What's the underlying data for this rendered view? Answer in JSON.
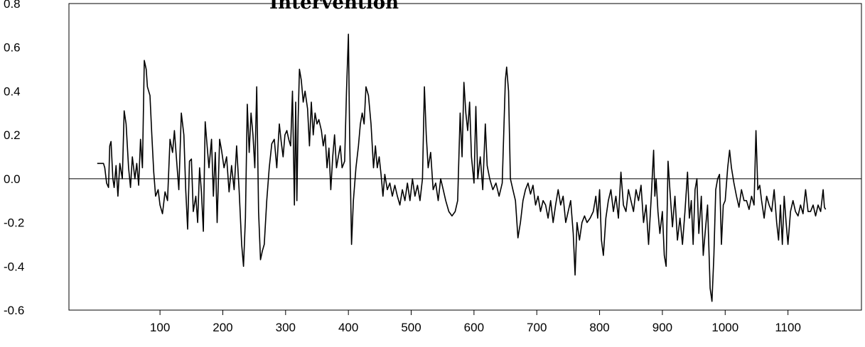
{
  "chart_data": {
    "type": "line",
    "title": "Intervention",
    "x": [
      0,
      5,
      10,
      12,
      15,
      18,
      20,
      22,
      25,
      27,
      30,
      33,
      36,
      40,
      43,
      46,
      50,
      53,
      56,
      60,
      63,
      66,
      69,
      72,
      75,
      78,
      80,
      84,
      87,
      90,
      93,
      97,
      100,
      104,
      108,
      112,
      116,
      120,
      123,
      127,
      130,
      134,
      138,
      141,
      144,
      147,
      150,
      153,
      157,
      160,
      163,
      166,
      169,
      172,
      175,
      178,
      182,
      185,
      188,
      191,
      195,
      198,
      202,
      206,
      210,
      214,
      218,
      222,
      226,
      230,
      233,
      236,
      239,
      242,
      245,
      248,
      251,
      254,
      257,
      260,
      263,
      266,
      270,
      274,
      278,
      282,
      286,
      290,
      293,
      296,
      299,
      302,
      305,
      308,
      311,
      314,
      316,
      318,
      320,
      322,
      325,
      328,
      331,
      335,
      338,
      341,
      344,
      347,
      350,
      353,
      357,
      360,
      363,
      366,
      369,
      372,
      375,
      378,
      381,
      384,
      387,
      390,
      394,
      397,
      400,
      402,
      405,
      408,
      412,
      416,
      419,
      422,
      425,
      428,
      432,
      436,
      440,
      443,
      446,
      449,
      452,
      455,
      458,
      462,
      466,
      470,
      474,
      478,
      482,
      486,
      490,
      494,
      498,
      502,
      506,
      510,
      514,
      518,
      521,
      524,
      527,
      531,
      535,
      539,
      543,
      547,
      551,
      555,
      560,
      565,
      570,
      574,
      578,
      581,
      584,
      587,
      590,
      593,
      596,
      600,
      603,
      606,
      610,
      614,
      618,
      621,
      625,
      630,
      635,
      640,
      645,
      650,
      652,
      655,
      658,
      662,
      666,
      670,
      674,
      678,
      682,
      686,
      690,
      694,
      698,
      702,
      706,
      710,
      714,
      718,
      722,
      726,
      730,
      734,
      738,
      742,
      746,
      750,
      754,
      758,
      761,
      764,
      768,
      772,
      776,
      780,
      785,
      790,
      794,
      797,
      800,
      803,
      806,
      810,
      814,
      818,
      822,
      826,
      830,
      834,
      838,
      842,
      846,
      850,
      854,
      858,
      862,
      866,
      870,
      874,
      878,
      882,
      886,
      888,
      890,
      893,
      896,
      900,
      903,
      906,
      909,
      912,
      916,
      920,
      924,
      928,
      932,
      936,
      940,
      943,
      946,
      949,
      952,
      955,
      958,
      962,
      965,
      968,
      972,
      976,
      979,
      982,
      985,
      988,
      991,
      994,
      997,
      1000,
      1004,
      1007,
      1010,
      1014,
      1018,
      1022,
      1026,
      1030,
      1034,
      1038,
      1042,
      1046,
      1049,
      1052,
      1055,
      1058,
      1062,
      1066,
      1070,
      1074,
      1078,
      1082,
      1085,
      1088,
      1091,
      1094,
      1097,
      1100,
      1104,
      1108,
      1112,
      1116,
      1120,
      1124,
      1128,
      1132,
      1136,
      1140,
      1144,
      1148,
      1152,
      1156,
      1158,
      1160
    ],
    "values": [
      0.07,
      0.07,
      0.07,
      0.05,
      -0.02,
      -0.04,
      0.15,
      0.17,
      0.0,
      -0.04,
      0.06,
      -0.08,
      0.07,
      0.0,
      0.31,
      0.25,
      0.05,
      -0.04,
      0.1,
      0.0,
      0.07,
      -0.03,
      0.18,
      0.05,
      0.54,
      0.5,
      0.42,
      0.38,
      0.2,
      0.03,
      -0.08,
      -0.05,
      -0.12,
      -0.16,
      -0.06,
      -0.1,
      0.18,
      0.12,
      0.22,
      0.06,
      -0.05,
      0.3,
      0.2,
      -0.05,
      -0.23,
      0.08,
      0.09,
      -0.15,
      -0.08,
      -0.2,
      0.05,
      -0.06,
      -0.24,
      0.26,
      0.15,
      0.05,
      0.18,
      -0.08,
      0.12,
      -0.2,
      0.18,
      0.13,
      0.05,
      0.1,
      -0.06,
      0.06,
      -0.05,
      0.15,
      -0.05,
      -0.3,
      -0.4,
      -0.18,
      0.34,
      0.12,
      0.3,
      0.2,
      0.05,
      0.42,
      -0.15,
      -0.37,
      -0.33,
      -0.3,
      -0.1,
      0.05,
      0.16,
      0.18,
      0.05,
      0.25,
      0.17,
      0.1,
      0.2,
      0.22,
      0.18,
      0.15,
      0.4,
      -0.12,
      0.35,
      -0.1,
      0.28,
      0.5,
      0.45,
      0.35,
      0.4,
      0.32,
      0.15,
      0.35,
      0.2,
      0.3,
      0.25,
      0.27,
      0.22,
      0.15,
      0.2,
      0.05,
      0.14,
      -0.05,
      0.1,
      0.2,
      0.05,
      0.1,
      0.15,
      0.05,
      0.08,
      0.4,
      0.66,
      0.2,
      -0.3,
      -0.1,
      0.05,
      0.15,
      0.25,
      0.3,
      0.25,
      0.42,
      0.38,
      0.25,
      0.05,
      0.15,
      0.05,
      0.1,
      0.02,
      -0.08,
      0.02,
      -0.05,
      -0.02,
      -0.08,
      -0.03,
      -0.08,
      -0.12,
      -0.05,
      -0.1,
      -0.02,
      -0.1,
      0.0,
      -0.08,
      -0.03,
      -0.1,
      0.0,
      0.42,
      0.2,
      0.05,
      0.12,
      -0.05,
      -0.02,
      -0.1,
      0.0,
      -0.05,
      -0.1,
      -0.15,
      -0.17,
      -0.15,
      -0.1,
      0.3,
      0.1,
      0.44,
      0.3,
      0.22,
      0.35,
      0.1,
      -0.02,
      0.33,
      0.0,
      0.1,
      -0.05,
      0.25,
      0.06,
      0.0,
      -0.05,
      -0.02,
      -0.08,
      -0.02,
      0.45,
      0.51,
      0.4,
      0.0,
      -0.05,
      -0.1,
      -0.27,
      -0.2,
      -0.1,
      -0.05,
      -0.02,
      -0.07,
      -0.03,
      -0.12,
      -0.08,
      -0.15,
      -0.1,
      -0.12,
      -0.18,
      -0.1,
      -0.2,
      -0.12,
      -0.05,
      -0.12,
      -0.08,
      -0.2,
      -0.15,
      -0.1,
      -0.25,
      -0.44,
      -0.2,
      -0.28,
      -0.2,
      -0.17,
      -0.2,
      -0.18,
      -0.15,
      -0.08,
      -0.18,
      -0.05,
      -0.28,
      -0.35,
      -0.18,
      -0.1,
      -0.05,
      -0.15,
      -0.08,
      -0.18,
      0.03,
      -0.12,
      -0.15,
      -0.05,
      -0.1,
      -0.15,
      -0.05,
      -0.1,
      -0.03,
      -0.2,
      -0.12,
      -0.3,
      -0.1,
      0.13,
      -0.08,
      0.0,
      -0.15,
      -0.25,
      -0.15,
      -0.35,
      -0.4,
      0.08,
      -0.05,
      -0.22,
      -0.08,
      -0.28,
      -0.18,
      -0.3,
      -0.15,
      0.03,
      -0.18,
      -0.1,
      -0.3,
      -0.05,
      0.0,
      -0.25,
      -0.08,
      -0.35,
      -0.25,
      -0.12,
      -0.5,
      -0.56,
      -0.35,
      -0.05,
      0.0,
      0.02,
      -0.3,
      -0.12,
      -0.1,
      0.05,
      0.13,
      0.05,
      -0.02,
      -0.08,
      -0.13,
      -0.05,
      -0.1,
      -0.1,
      -0.14,
      -0.08,
      -0.12,
      0.22,
      -0.05,
      -0.03,
      -0.1,
      -0.18,
      -0.08,
      -0.12,
      -0.15,
      -0.05,
      -0.2,
      -0.28,
      -0.12,
      -0.3,
      -0.08,
      -0.2,
      -0.3,
      -0.15,
      -0.1,
      -0.15,
      -0.17,
      -0.12,
      -0.16,
      -0.05,
      -0.15,
      -0.15,
      -0.12,
      -0.17,
      -0.12,
      -0.15,
      -0.05,
      -0.13,
      -0.14
    ],
    "color": "#000000",
    "xlim": [
      -45,
      1217
    ],
    "xticks": [
      100,
      200,
      300,
      400,
      500,
      600,
      700,
      800,
      900,
      1000,
      1100
    ],
    "ylim": [
      -0.6,
      0.8
    ],
    "yticks": [
      -0.6,
      -0.4,
      -0.2,
      {
        "value": 0,
        "label": "0.0"
      },
      0.2,
      0.4,
      0.6,
      0.8
    ],
    "zero_line": true
  }
}
